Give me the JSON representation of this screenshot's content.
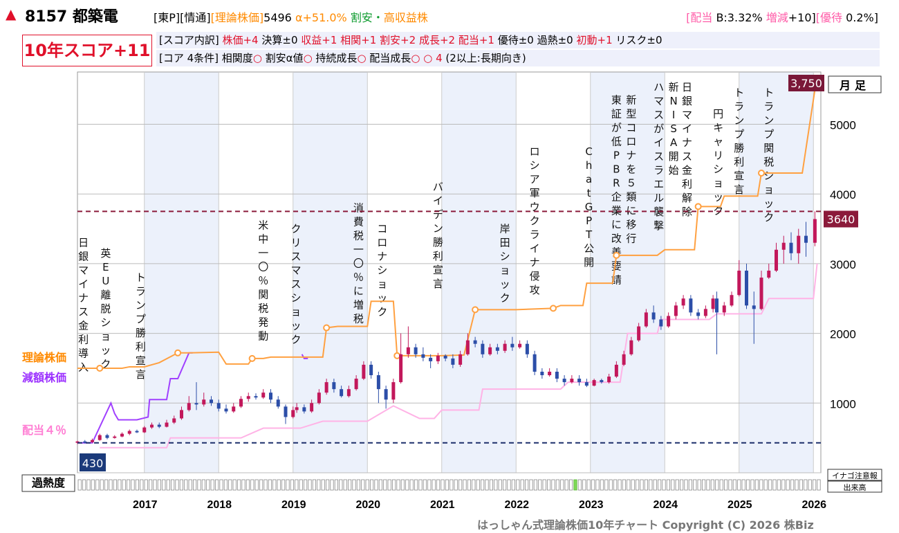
{
  "header": {
    "code": "8157 都築電",
    "market": "[東P]",
    "sector": "[情通]",
    "theory_label": "[理論株価]",
    "theory_value": "5496",
    "alpha": "α+51.0%",
    "cheap": "割安",
    "dot": "・",
    "high_yield": "高収益株",
    "div_label": "[配当",
    "div_value": "B:3.32%",
    "change_label": "増減",
    "change_value": "+10]",
    "perk_label": "[優待",
    "perk_value": "0.2%]"
  },
  "score": {
    "title": "10年スコア+11",
    "breakdown_label": "[スコア内訳]",
    "items": [
      {
        "t": "株価+4",
        "c": "#e0102a"
      },
      {
        "t": "決算±0",
        "c": "#000"
      },
      {
        "t": "収益+1",
        "c": "#e0102a"
      },
      {
        "t": "相関+1",
        "c": "#e0102a"
      },
      {
        "t": "割安+2",
        "c": "#e0102a"
      },
      {
        "t": "成長+2",
        "c": "#e0102a"
      },
      {
        "t": "配当+1",
        "c": "#e0102a"
      },
      {
        "t": "優待±0",
        "c": "#000"
      },
      {
        "t": "過熱±0",
        "c": "#000"
      },
      {
        "t": "初動+1",
        "c": "#e0102a"
      },
      {
        "t": "リスク±0",
        "c": "#000"
      }
    ],
    "core_label": "[コア 4条件]",
    "core_items": [
      "相関度○",
      "割安α値○",
      "持続成長○",
      "配当成長○",
      "○"
    ],
    "core_count": "4",
    "core_note": "(2以上:長期向き)"
  },
  "chart_data": {
    "type": "line",
    "period": "月足",
    "ylim": [
      0,
      5750
    ],
    "yticks": [
      1000,
      2000,
      3000,
      4000,
      5000
    ],
    "xticks": [
      "2017",
      "2018",
      "2019",
      "2020",
      "2021",
      "2022",
      "2023",
      "2024",
      "2025",
      "2026"
    ],
    "current_price": "3640",
    "high_label": "3,750",
    "low_label": "430",
    "legend": [
      "理論株価",
      "減額株価",
      "配当４％"
    ],
    "legend_colors": [
      "#ff8a00",
      "#9b30ff",
      "#ff7fd4"
    ],
    "dividend_level": 430,
    "high_level": 3750,
    "overheat_label": "過熱度",
    "inago_label": "イナゴ注意報",
    "volume_label": "出来高",
    "events": [
      {
        "x": 2016.08,
        "t": "日銀マイナス金利導入"
      },
      {
        "x": 2016.38,
        "t": "英EU離脱ショック"
      },
      {
        "x": 2016.85,
        "t": "トランプ勝利宣言"
      },
      {
        "x": 2018.5,
        "t": "米中一〇％関税発動"
      },
      {
        "x": 2018.94,
        "t": "クリスマスショック"
      },
      {
        "x": 2019.78,
        "t": "消費税一〇％に増税"
      },
      {
        "x": 2020.1,
        "t": "コロナショック"
      },
      {
        "x": 2020.85,
        "t": "バイデン勝利宣言"
      },
      {
        "x": 2021.75,
        "t": "岸田ショック"
      },
      {
        "x": 2022.15,
        "t": "ロシア軍ウクライナ侵攻"
      },
      {
        "x": 2022.88,
        "t": "ChatGPT公開"
      },
      {
        "x": 2023.25,
        "t": "東証が低PBR企業に改善要請"
      },
      {
        "x": 2023.45,
        "t": "新型コロナを５類に移行"
      },
      {
        "x": 2023.82,
        "t": "ハマスがイスラエル襲撃"
      },
      {
        "x": 2024.02,
        "t": "新NISA開始"
      },
      {
        "x": 2024.2,
        "t": "日銀マイナス金利解除"
      },
      {
        "x": 2024.62,
        "t": "円キャリショック"
      },
      {
        "x": 2024.9,
        "t": "トランプ勝利宣言"
      },
      {
        "x": 2025.3,
        "t": "トランプ関税ショック"
      }
    ],
    "theory": [
      [
        2016.0,
        1500
      ],
      [
        2016.1,
        1500
      ],
      [
        2016.3,
        1500
      ],
      [
        2016.5,
        1500
      ],
      [
        2016.6,
        1500
      ],
      [
        2016.7,
        1520
      ],
      [
        2016.9,
        1520
      ],
      [
        2017.1,
        1580
      ],
      [
        2017.35,
        1720
      ],
      [
        2017.5,
        1720
      ],
      [
        2017.9,
        1730
      ],
      [
        2018.0,
        1560
      ],
      [
        2018.3,
        1560
      ],
      [
        2018.35,
        1640
      ],
      [
        2018.5,
        1640
      ],
      [
        2018.6,
        1660
      ],
      [
        2019.1,
        1660
      ],
      [
        2019.3,
        1660
      ],
      [
        2019.35,
        2080
      ],
      [
        2019.5,
        2100
      ],
      [
        2019.9,
        2100
      ],
      [
        2019.95,
        2460
      ],
      [
        2020.25,
        2460
      ],
      [
        2020.3,
        1680
      ],
      [
        2020.6,
        1680
      ],
      [
        2020.9,
        1680
      ],
      [
        2021.2,
        1690
      ],
      [
        2021.35,
        2340
      ],
      [
        2021.9,
        2340
      ],
      [
        2022.4,
        2360
      ],
      [
        2022.5,
        2400
      ],
      [
        2022.8,
        2400
      ],
      [
        2022.85,
        2720
      ],
      [
        2023.2,
        2720
      ],
      [
        2023.25,
        3120
      ],
      [
        2023.8,
        3120
      ],
      [
        2023.9,
        3200
      ],
      [
        2024.3,
        3200
      ],
      [
        2024.35,
        3820
      ],
      [
        2024.65,
        3820
      ],
      [
        2024.7,
        3970
      ],
      [
        2025.15,
        3970
      ],
      [
        2025.2,
        4300
      ],
      [
        2025.35,
        4300
      ],
      [
        2025.55,
        4300
      ],
      [
        2025.75,
        4300
      ],
      [
        2025.92,
        5496
      ]
    ],
    "reduced": [
      [
        2016.0,
        430
      ],
      [
        2016.2,
        430
      ],
      [
        2016.45,
        1000
      ],
      [
        2016.5,
        850
      ],
      [
        2016.55,
        760
      ],
      [
        2016.8,
        760
      ],
      [
        2016.95,
        800
      ],
      [
        2016.97,
        1050
      ],
      [
        2017.2,
        1050
      ],
      [
        2017.25,
        1350
      ],
      [
        2017.35,
        1350
      ],
      [
        2017.5,
        1720
      ],
      [
        2017.55,
        1720
      ]
    ],
    "reduced2": [
      [
        2019.02,
        1700
      ],
      [
        2019.05,
        1640
      ],
      [
        2019.1,
        1640
      ]
    ],
    "pink1": [
      [
        2016.3,
        360
      ],
      [
        2016.9,
        360
      ],
      [
        2017.2,
        360
      ],
      [
        2017.25,
        500
      ],
      [
        2018.2,
        500
      ],
      [
        2018.5,
        640
      ],
      [
        2019.0,
        640
      ],
      [
        2019.3,
        740
      ],
      [
        2019.9,
        740
      ],
      [
        2020.25,
        960
      ],
      [
        2020.6,
        780
      ],
      [
        2020.8,
        780
      ],
      [
        2020.9,
        900
      ],
      [
        2021.4,
        900
      ],
      [
        2021.45,
        1200
      ],
      [
        2022.5,
        1200
      ],
      [
        2022.6,
        1300
      ],
      [
        2023.3,
        1300
      ],
      [
        2023.4,
        2000
      ],
      [
        2023.8,
        2000
      ],
      [
        2023.85,
        2200
      ],
      [
        2024.5,
        2200
      ],
      [
        2024.6,
        2280
      ],
      [
        2025.2,
        2280
      ],
      [
        2025.3,
        2500
      ],
      [
        2025.9,
        2500
      ],
      [
        2025.95,
        3000
      ]
    ],
    "candles": [
      [
        2016.0,
        430,
        450,
        410,
        460
      ],
      [
        2016.1,
        450,
        440,
        420,
        470
      ],
      [
        2016.2,
        440,
        470,
        430,
        490
      ],
      [
        2016.3,
        470,
        540,
        460,
        560
      ],
      [
        2016.4,
        540,
        500,
        480,
        560
      ],
      [
        2016.5,
        500,
        520,
        490,
        540
      ],
      [
        2016.6,
        520,
        560,
        510,
        580
      ],
      [
        2016.7,
        560,
        600,
        540,
        620
      ],
      [
        2016.8,
        600,
        580,
        570,
        620
      ],
      [
        2016.9,
        580,
        650,
        570,
        670
      ],
      [
        2017.0,
        650,
        690,
        630,
        720
      ],
      [
        2017.1,
        690,
        660,
        640,
        720
      ],
      [
        2017.2,
        660,
        720,
        650,
        760
      ],
      [
        2017.3,
        720,
        780,
        700,
        820
      ],
      [
        2017.4,
        780,
        900,
        760,
        950
      ],
      [
        2017.5,
        900,
        1000,
        880,
        1100
      ],
      [
        2017.6,
        1000,
        980,
        900,
        1300
      ],
      [
        2017.7,
        980,
        1050,
        950,
        1150
      ],
      [
        2017.8,
        1050,
        1000,
        960,
        1100
      ],
      [
        2017.9,
        1000,
        920,
        880,
        1050
      ],
      [
        2018.0,
        920,
        880,
        850,
        980
      ],
      [
        2018.1,
        880,
        950,
        860,
        1000
      ],
      [
        2018.2,
        950,
        1060,
        930,
        1100
      ],
      [
        2018.3,
        1060,
        1100,
        1020,
        1150
      ],
      [
        2018.4,
        1100,
        1080,
        1050,
        1140
      ],
      [
        2018.5,
        1080,
        1150,
        1060,
        1200
      ],
      [
        2018.6,
        1150,
        1050,
        1000,
        1200
      ],
      [
        2018.7,
        1050,
        950,
        920,
        1100
      ],
      [
        2018.8,
        950,
        800,
        700,
        980
      ],
      [
        2018.9,
        800,
        900,
        780,
        950
      ],
      [
        2018.95,
        900,
        940,
        860,
        1000
      ],
      [
        2019.05,
        940,
        880,
        850,
        980
      ],
      [
        2019.15,
        880,
        1000,
        860,
        1050
      ],
      [
        2019.25,
        1000,
        1150,
        980,
        1200
      ],
      [
        2019.35,
        1150,
        1300,
        1120,
        1350
      ],
      [
        2019.45,
        1300,
        1200,
        1150,
        1350
      ],
      [
        2019.55,
        1200,
        1100,
        1080,
        1250
      ],
      [
        2019.65,
        1100,
        1200,
        1080,
        1250
      ],
      [
        2019.75,
        1200,
        1350,
        1180,
        1400
      ],
      [
        2019.85,
        1350,
        1550,
        1330,
        1600
      ],
      [
        2019.95,
        1550,
        1400,
        1350,
        1600
      ],
      [
        2020.05,
        1400,
        1200,
        1000,
        1450
      ],
      [
        2020.15,
        1200,
        1050,
        920,
        1250
      ],
      [
        2020.25,
        1050,
        1300,
        1000,
        1350
      ],
      [
        2020.35,
        1300,
        1700,
        1280,
        2000
      ],
      [
        2020.45,
        1700,
        1800,
        1650,
        2100
      ],
      [
        2020.55,
        1800,
        1700,
        1650,
        1850
      ],
      [
        2020.65,
        1700,
        1650,
        1600,
        1800
      ],
      [
        2020.75,
        1650,
        1600,
        1500,
        1700
      ],
      [
        2020.85,
        1600,
        1680,
        1560,
        1720
      ],
      [
        2020.95,
        1680,
        1640,
        1600,
        1700
      ],
      [
        2021.05,
        1640,
        1550,
        1500,
        1700
      ],
      [
        2021.15,
        1550,
        1700,
        1520,
        1750
      ],
      [
        2021.25,
        1700,
        1900,
        1680,
        2000
      ],
      [
        2021.35,
        1900,
        1850,
        1800,
        1950
      ],
      [
        2021.45,
        1850,
        1700,
        1650,
        1900
      ],
      [
        2021.55,
        1700,
        1800,
        1680,
        1850
      ],
      [
        2021.65,
        1800,
        1750,
        1700,
        1850
      ],
      [
        2021.75,
        1750,
        1850,
        1720,
        1900
      ],
      [
        2021.85,
        1850,
        1800,
        1750,
        1950
      ],
      [
        2021.95,
        1800,
        1850,
        1780,
        1900
      ],
      [
        2022.05,
        1850,
        1700,
        1650,
        1900
      ],
      [
        2022.15,
        1700,
        1450,
        1400,
        1750
      ],
      [
        2022.25,
        1450,
        1400,
        1350,
        1500
      ],
      [
        2022.35,
        1400,
        1450,
        1380,
        1500
      ],
      [
        2022.45,
        1450,
        1350,
        1300,
        1500
      ],
      [
        2022.55,
        1350,
        1300,
        1250,
        1400
      ],
      [
        2022.65,
        1300,
        1350,
        1280,
        1400
      ],
      [
        2022.75,
        1350,
        1300,
        1250,
        1400
      ],
      [
        2022.85,
        1300,
        1250,
        1230,
        1350
      ],
      [
        2022.95,
        1250,
        1330,
        1240,
        1350
      ],
      [
        2023.05,
        1330,
        1300,
        1280,
        1350
      ],
      [
        2023.15,
        1300,
        1380,
        1280,
        1420
      ],
      [
        2023.25,
        1380,
        1550,
        1360,
        1600
      ],
      [
        2023.35,
        1550,
        1700,
        1530,
        1750
      ],
      [
        2023.45,
        1700,
        1900,
        1680,
        1950
      ],
      [
        2023.55,
        1900,
        2100,
        1880,
        2150
      ],
      [
        2023.65,
        2100,
        2300,
        2080,
        2350
      ],
      [
        2023.75,
        2300,
        2200,
        2150,
        2400
      ],
      [
        2023.85,
        2200,
        2100,
        2050,
        2250
      ],
      [
        2023.95,
        2100,
        2250,
        2080,
        2300
      ],
      [
        2024.05,
        2250,
        2400,
        2200,
        2450
      ],
      [
        2024.15,
        2400,
        2500,
        2350,
        2550
      ],
      [
        2024.25,
        2500,
        2300,
        2250,
        2550
      ],
      [
        2024.35,
        2300,
        2250,
        2200,
        2350
      ],
      [
        2024.45,
        2250,
        2350,
        2220,
        2400
      ],
      [
        2024.55,
        2350,
        2500,
        2300,
        2550
      ],
      [
        2024.6,
        2500,
        2300,
        1700,
        2600
      ],
      [
        2024.7,
        2300,
        2400,
        2250,
        2450
      ],
      [
        2024.8,
        2400,
        2550,
        2380,
        2600
      ],
      [
        2024.9,
        2550,
        2900,
        2530,
        3050
      ],
      [
        2025.0,
        2900,
        2400,
        2350,
        3000
      ],
      [
        2025.1,
        2400,
        2350,
        1850,
        2600
      ],
      [
        2025.2,
        2350,
        2800,
        2330,
        2900
      ],
      [
        2025.3,
        2800,
        2900,
        2780,
        3000
      ],
      [
        2025.4,
        2900,
        3200,
        2880,
        3300
      ],
      [
        2025.5,
        3200,
        3300,
        3000,
        3400
      ],
      [
        2025.6,
        3300,
        3150,
        3050,
        3450
      ],
      [
        2025.7,
        3150,
        3400,
        3000,
        3500
      ],
      [
        2025.8,
        3400,
        3300,
        3100,
        3600
      ],
      [
        2025.92,
        3300,
        3640,
        3250,
        3750
      ]
    ]
  }
}
